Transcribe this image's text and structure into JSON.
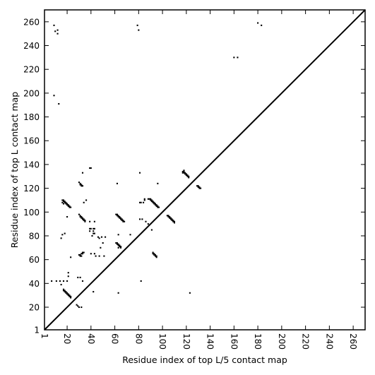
{
  "chart_data": {
    "type": "scatter",
    "xlabel": "Residue index of top L/5 contact map",
    "ylabel": "Residue index of top L contact map",
    "xlim": [
      1,
      270
    ],
    "ylim": [
      1,
      270
    ],
    "xticks": [
      1,
      20,
      40,
      60,
      80,
      100,
      120,
      140,
      160,
      180,
      200,
      220,
      240,
      260
    ],
    "yticks": [
      1,
      20,
      40,
      60,
      80,
      100,
      120,
      140,
      160,
      180,
      200,
      220,
      240,
      260
    ],
    "grid": false,
    "marker_color": "#000000",
    "diagonal": {
      "from": [
        1,
        1
      ],
      "to": [
        270,
        270
      ]
    },
    "upper_points": [
      [
        118,
        135
      ],
      [
        118,
        134
      ],
      [
        117,
        134
      ],
      [
        118,
        133
      ],
      [
        119,
        133
      ],
      [
        117,
        133
      ],
      [
        119,
        132
      ],
      [
        120,
        132
      ],
      [
        120,
        131
      ],
      [
        121,
        131
      ],
      [
        121,
        130
      ],
      [
        122,
        130
      ],
      [
        122,
        129
      ],
      [
        129,
        122
      ],
      [
        130,
        122
      ],
      [
        130,
        121
      ],
      [
        131,
        121
      ],
      [
        131,
        120
      ],
      [
        132,
        120
      ],
      [
        79,
        257
      ],
      [
        80,
        253
      ],
      [
        180,
        259
      ],
      [
        183,
        257
      ],
      [
        160,
        230
      ],
      [
        163,
        230
      ],
      [
        81,
        133
      ],
      [
        85,
        111
      ],
      [
        85,
        110
      ],
      [
        88,
        111
      ],
      [
        89,
        111
      ],
      [
        90,
        111
      ],
      [
        90,
        110
      ],
      [
        91,
        110
      ],
      [
        91,
        109
      ],
      [
        92,
        109
      ],
      [
        92,
        108
      ],
      [
        93,
        108
      ],
      [
        93,
        107
      ],
      [
        94,
        107
      ],
      [
        94,
        106
      ],
      [
        95,
        106
      ],
      [
        95,
        105
      ],
      [
        96,
        105
      ],
      [
        96,
        104
      ],
      [
        97,
        104
      ],
      [
        96,
        124
      ],
      [
        81,
        108
      ],
      [
        82,
        108
      ],
      [
        84,
        108
      ],
      [
        83,
        94
      ],
      [
        86,
        92
      ],
      [
        81,
        94
      ],
      [
        88,
        90
      ],
      [
        62,
        124
      ]
    ],
    "lower_points": [
      [
        9,
        257
      ],
      [
        10,
        252
      ],
      [
        12,
        253
      ],
      [
        12,
        250
      ],
      [
        9,
        198
      ],
      [
        13,
        191
      ],
      [
        16,
        110
      ],
      [
        17,
        110
      ],
      [
        17,
        109
      ],
      [
        18,
        109
      ],
      [
        18,
        108
      ],
      [
        19,
        108
      ],
      [
        19,
        107
      ],
      [
        20,
        107
      ],
      [
        20,
        106
      ],
      [
        21,
        106
      ],
      [
        21,
        105
      ],
      [
        22,
        105
      ],
      [
        22,
        104
      ],
      [
        23,
        104
      ],
      [
        16,
        108
      ],
      [
        17,
        107
      ],
      [
        30,
        125
      ],
      [
        31,
        124
      ],
      [
        31,
        123
      ],
      [
        32,
        123
      ],
      [
        32,
        122
      ],
      [
        33,
        122
      ],
      [
        33,
        133
      ],
      [
        36,
        110
      ],
      [
        34,
        108
      ],
      [
        39,
        137
      ],
      [
        40,
        137
      ],
      [
        30,
        98
      ],
      [
        31,
        97
      ],
      [
        31,
        96
      ],
      [
        32,
        96
      ],
      [
        32,
        95
      ],
      [
        33,
        95
      ],
      [
        33,
        94
      ],
      [
        34,
        94
      ],
      [
        34,
        93
      ],
      [
        35,
        93
      ],
      [
        35,
        92
      ],
      [
        20,
        96
      ],
      [
        39,
        92
      ],
      [
        43,
        92
      ],
      [
        39,
        86
      ],
      [
        40,
        86
      ],
      [
        42,
        86
      ],
      [
        43,
        86
      ],
      [
        39,
        84
      ],
      [
        42,
        84
      ],
      [
        42,
        82
      ],
      [
        43,
        82
      ],
      [
        41,
        80
      ],
      [
        46,
        79
      ],
      [
        47,
        78
      ],
      [
        49,
        79
      ],
      [
        52,
        79
      ],
      [
        50,
        74
      ],
      [
        48,
        70
      ],
      [
        61,
        98
      ],
      [
        62,
        98
      ],
      [
        62,
        97
      ],
      [
        63,
        97
      ],
      [
        63,
        96
      ],
      [
        64,
        96
      ],
      [
        64,
        95
      ],
      [
        65,
        95
      ],
      [
        65,
        94
      ],
      [
        66,
        94
      ],
      [
        66,
        93
      ],
      [
        67,
        93
      ],
      [
        67,
        92
      ],
      [
        68,
        92
      ],
      [
        63,
        81
      ],
      [
        73,
        81
      ],
      [
        61,
        74
      ],
      [
        62,
        74
      ],
      [
        62,
        73
      ],
      [
        63,
        73
      ],
      [
        63,
        72
      ],
      [
        64,
        72
      ],
      [
        64,
        71
      ],
      [
        65,
        71
      ],
      [
        65,
        70
      ],
      [
        63,
        70
      ],
      [
        30,
        64
      ],
      [
        31,
        64
      ],
      [
        31,
        63
      ],
      [
        32,
        63
      ],
      [
        32,
        65
      ],
      [
        33,
        65
      ],
      [
        33,
        66
      ],
      [
        34,
        66
      ],
      [
        44,
        63
      ],
      [
        47,
        63
      ],
      [
        51,
        63
      ],
      [
        23,
        62
      ],
      [
        40,
        65
      ],
      [
        43,
        65
      ],
      [
        104,
        97
      ],
      [
        105,
        97
      ],
      [
        105,
        96
      ],
      [
        106,
        96
      ],
      [
        106,
        95
      ],
      [
        107,
        95
      ],
      [
        107,
        94
      ],
      [
        108,
        94
      ],
      [
        108,
        93
      ],
      [
        109,
        93
      ],
      [
        109,
        92
      ],
      [
        110,
        92
      ],
      [
        110,
        91
      ],
      [
        92,
        65
      ],
      [
        93,
        65
      ],
      [
        93,
        64
      ],
      [
        94,
        64
      ],
      [
        94,
        63
      ],
      [
        95,
        63
      ],
      [
        95,
        62
      ],
      [
        91,
        85
      ],
      [
        92,
        66
      ],
      [
        15,
        78
      ],
      [
        16,
        81
      ],
      [
        18,
        82
      ],
      [
        7,
        42
      ],
      [
        11,
        42
      ],
      [
        14,
        42
      ],
      [
        17,
        42
      ],
      [
        20,
        42
      ],
      [
        21,
        46
      ],
      [
        21,
        49
      ],
      [
        15,
        39
      ],
      [
        17,
        35
      ],
      [
        17,
        34
      ],
      [
        18,
        34
      ],
      [
        18,
        33
      ],
      [
        19,
        33
      ],
      [
        19,
        32
      ],
      [
        20,
        32
      ],
      [
        20,
        31
      ],
      [
        21,
        31
      ],
      [
        21,
        30
      ],
      [
        22,
        30
      ],
      [
        22,
        29
      ],
      [
        23,
        29
      ],
      [
        23,
        28
      ],
      [
        29,
        45
      ],
      [
        31,
        45
      ],
      [
        33,
        42
      ],
      [
        42,
        33
      ],
      [
        28,
        22
      ],
      [
        29,
        21
      ],
      [
        30,
        20
      ],
      [
        32,
        20
      ],
      [
        63,
        32
      ],
      [
        82,
        42
      ],
      [
        123,
        32
      ]
    ]
  }
}
